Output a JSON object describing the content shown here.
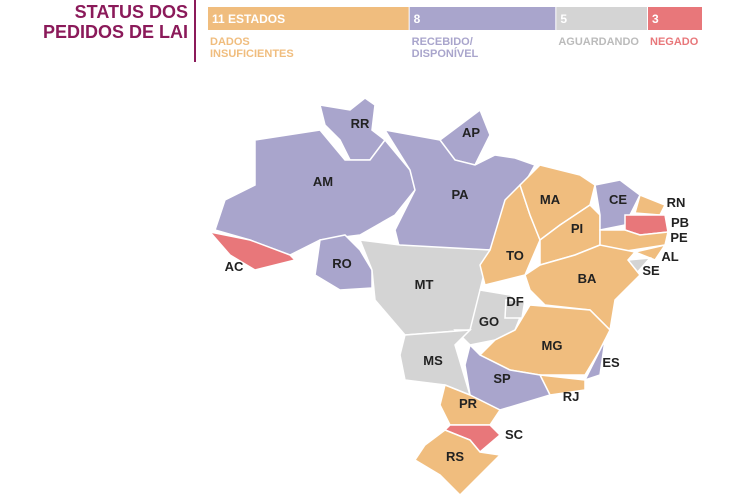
{
  "title": "STATUS DOS\nPEDIDOS DE LAI",
  "legend": [
    {
      "count": 11,
      "count_label": "11 ESTADOS",
      "name": "DADOS\nINSUFICIENTES",
      "color": "#f0bd7e"
    },
    {
      "count": 8,
      "count_label": "8",
      "name": "RECEBIDO/\nDISPONÍVEL",
      "color": "#a9a5cc"
    },
    {
      "count": 5,
      "count_label": "5",
      "name": "AGUARDANDO",
      "color": "#d4d4d4"
    },
    {
      "count": 3,
      "count_label": "3",
      "name": "NEGADO",
      "color": "#e8777a"
    }
  ],
  "states": [
    {
      "label": "RR",
      "status": 1
    },
    {
      "label": "AP",
      "status": 1
    },
    {
      "label": "AM",
      "status": 1
    },
    {
      "label": "AC",
      "status": 3
    },
    {
      "label": "RO",
      "status": 1
    },
    {
      "label": "PA",
      "status": 1
    },
    {
      "label": "MT",
      "status": 2
    },
    {
      "label": "TO",
      "status": 0
    },
    {
      "label": "MA",
      "status": 0
    },
    {
      "label": "PI",
      "status": 0
    },
    {
      "label": "CE",
      "status": 1
    },
    {
      "label": "RN",
      "status": 0
    },
    {
      "label": "PB",
      "status": 3
    },
    {
      "label": "PE",
      "status": 0
    },
    {
      "label": "AL",
      "status": 0
    },
    {
      "label": "SE",
      "status": 2
    },
    {
      "label": "BA",
      "status": 0
    },
    {
      "label": "GO",
      "status": 2
    },
    {
      "label": "DF",
      "status": 2
    },
    {
      "label": "MG",
      "status": 0
    },
    {
      "label": "ES",
      "status": 1
    },
    {
      "label": "RJ",
      "status": 0
    },
    {
      "label": "SP",
      "status": 1
    },
    {
      "label": "MS",
      "status": 2
    },
    {
      "label": "PR",
      "status": 0
    },
    {
      "label": "SC",
      "status": 3
    },
    {
      "label": "RS",
      "status": 0
    }
  ]
}
